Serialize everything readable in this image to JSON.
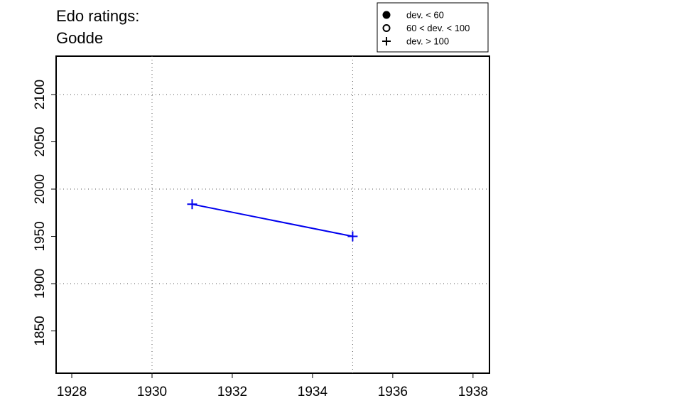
{
  "chart_data": {
    "type": "line",
    "title": "Edo ratings:",
    "subtitle": "Godde",
    "x": [
      1931,
      1935
    ],
    "series": [
      {
        "name": "Godde",
        "color": "#0000ee",
        "marker": "plus",
        "values": [
          1984,
          1950
        ]
      }
    ],
    "xlim": [
      1927.61,
      1938.41
    ],
    "xticks": [
      1928,
      1930,
      1932,
      1934,
      1936,
      1938
    ],
    "ylim": [
      1805.3,
      2140.6
    ],
    "yticks": [
      1850,
      1900,
      1950,
      2000,
      2050,
      2100
    ],
    "xgrid": [
      1930,
      1935
    ],
    "ygrid": [
      1900,
      2000,
      2100
    ],
    "legend": [
      {
        "label": "dev. < 60",
        "symbol": "filled-circle"
      },
      {
        "label": "60 < dev. < 100",
        "symbol": "open-circle"
      },
      {
        "label": "dev. > 100",
        "symbol": "plus"
      }
    ],
    "legend_position": "top-right"
  }
}
